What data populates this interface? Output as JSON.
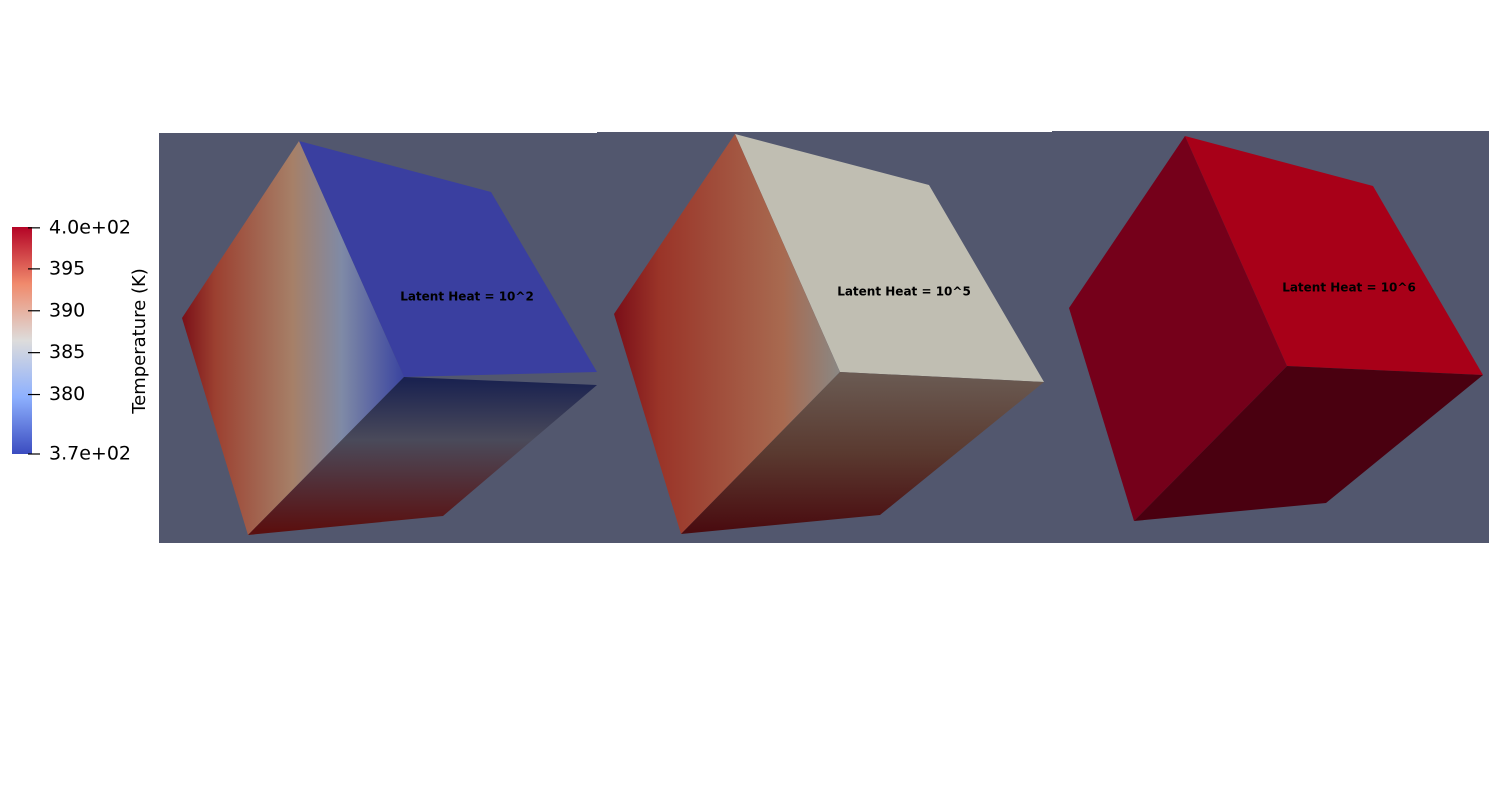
{
  "legend": {
    "title": "Temperature (K)",
    "range": [
      372.9,
      400
    ],
    "ticks": [
      {
        "value": 399.9,
        "label": "4.0e+02"
      },
      {
        "value": 395,
        "label": "395"
      },
      {
        "value": 390,
        "label": "390"
      },
      {
        "value": 385,
        "label": "385"
      },
      {
        "value": 380,
        "label": "380"
      },
      {
        "value": 372.9,
        "label": "3.7e+02"
      }
    ]
  },
  "panels": [
    {
      "label": "Latent Heat = 10^2"
    },
    {
      "label": "Latent Heat = 10^5"
    },
    {
      "label": "Latent Heat = 10^6"
    }
  ]
}
